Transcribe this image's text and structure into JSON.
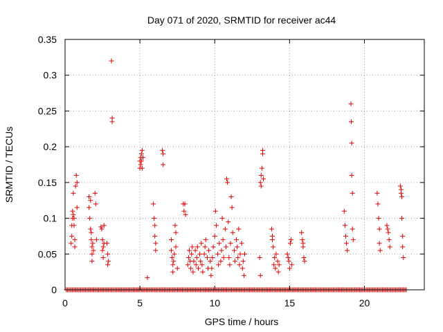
{
  "chart_data": {
    "type": "scatter",
    "title": "Day 071 of 2020, SRMTID for receiver ac44",
    "xlabel": "GPS time / hours",
    "ylabel": "SRMTID / TECUs",
    "xlim": [
      0,
      24
    ],
    "ylim": [
      0,
      0.35
    ],
    "grid": true,
    "marker": "+",
    "marker_color": "#e00000",
    "x_ticks": [
      0,
      5,
      10,
      15,
      20
    ],
    "x_tick_labels": [
      "0",
      "5",
      "10",
      "15",
      "20"
    ],
    "y_ticks": [
      0,
      0.05,
      0.1,
      0.15,
      0.2,
      0.25,
      0.3,
      0.35
    ],
    "y_tick_labels": [
      "0",
      "0.05",
      "0.1",
      "0.15",
      "0.2",
      "0.25",
      "0.3",
      "0.35"
    ],
    "series": [
      {
        "name": "SRMTID",
        "points": [
          [
            0.4,
            0.065
          ],
          [
            0.45,
            0.075
          ],
          [
            0.45,
            0.09
          ],
          [
            0.5,
            0.1
          ],
          [
            0.5,
            0.11
          ],
          [
            0.55,
            0.135
          ],
          [
            0.55,
            0.105
          ],
          [
            0.6,
            0.1
          ],
          [
            0.6,
            0.09
          ],
          [
            0.65,
            0.07
          ],
          [
            0.65,
            0.06
          ],
          [
            0.7,
            0.145
          ],
          [
            0.75,
            0.16
          ],
          [
            0.8,
            0.115
          ],
          [
            0.8,
            0.15
          ],
          [
            1.6,
            0.13
          ],
          [
            1.6,
            0.115
          ],
          [
            1.65,
            0.1
          ],
          [
            1.7,
            0.125
          ],
          [
            1.7,
            0.085
          ],
          [
            1.75,
            0.08
          ],
          [
            1.75,
            0.07
          ],
          [
            1.8,
            0.06
          ],
          [
            1.8,
            0.05
          ],
          [
            1.8,
            0.04
          ],
          [
            1.85,
            0.065
          ],
          [
            1.9,
            0.055
          ],
          [
            2.0,
            0.135
          ],
          [
            2.05,
            0.12
          ],
          [
            2.1,
            0.07
          ],
          [
            2.4,
            0.088
          ],
          [
            2.45,
            0.085
          ],
          [
            2.5,
            0.07
          ],
          [
            2.5,
            0.055
          ],
          [
            2.55,
            0.06
          ],
          [
            2.55,
            0.045
          ],
          [
            2.6,
            0.065
          ],
          [
            2.6,
            0.09
          ],
          [
            2.8,
            0.065
          ],
          [
            2.85,
            0.05
          ],
          [
            2.85,
            0.035
          ],
          [
            2.9,
            0.04
          ],
          [
            3.1,
            0.32
          ],
          [
            3.15,
            0.24
          ],
          [
            3.15,
            0.235
          ],
          [
            5.0,
            0.18
          ],
          [
            5.0,
            0.17
          ],
          [
            5.05,
            0.185
          ],
          [
            5.05,
            0.175
          ],
          [
            5.1,
            0.19
          ],
          [
            5.1,
            0.18
          ],
          [
            5.15,
            0.195
          ],
          [
            5.15,
            0.17
          ],
          [
            5.2,
            0.185
          ],
          [
            5.5,
            0.017
          ],
          [
            5.9,
            0.12
          ],
          [
            5.95,
            0.1
          ],
          [
            6.0,
            0.09
          ],
          [
            6.0,
            0.075
          ],
          [
            6.05,
            0.065
          ],
          [
            6.05,
            0.055
          ],
          [
            6.5,
            0.195
          ],
          [
            6.55,
            0.19
          ],
          [
            6.55,
            0.175
          ],
          [
            7.1,
            0.07
          ],
          [
            7.1,
            0.055
          ],
          [
            7.15,
            0.045
          ],
          [
            7.2,
            0.035
          ],
          [
            7.2,
            0.025
          ],
          [
            7.25,
            0.04
          ],
          [
            7.3,
            0.05
          ],
          [
            7.35,
            0.09
          ],
          [
            7.4,
            0.08
          ],
          [
            7.4,
            0.06
          ],
          [
            7.5,
            0.03
          ],
          [
            7.9,
            0.12
          ],
          [
            7.95,
            0.11
          ],
          [
            8.0,
            0.12
          ],
          [
            8.05,
            0.105
          ],
          [
            8.2,
            0.035
          ],
          [
            8.25,
            0.045
          ],
          [
            8.3,
            0.055
          ],
          [
            8.35,
            0.04
          ],
          [
            8.4,
            0.03
          ],
          [
            8.45,
            0.05
          ],
          [
            8.5,
            0.06
          ],
          [
            8.55,
            0.025
          ],
          [
            8.6,
            0.04
          ],
          [
            8.7,
            0.055
          ],
          [
            8.75,
            0.035
          ],
          [
            8.8,
            0.045
          ],
          [
            8.85,
            0.06
          ],
          [
            8.9,
            0.03
          ],
          [
            9.0,
            0.05
          ],
          [
            9.05,
            0.04
          ],
          [
            9.1,
            0.065
          ],
          [
            9.15,
            0.035
          ],
          [
            9.2,
            0.025
          ],
          [
            9.3,
            0.05
          ],
          [
            9.35,
            0.06
          ],
          [
            9.4,
            0.07
          ],
          [
            9.5,
            0.045
          ],
          [
            9.55,
            0.03
          ],
          [
            9.6,
            0.055
          ],
          [
            9.7,
            0.04
          ],
          [
            9.75,
            0.02
          ],
          [
            9.8,
            0.03
          ],
          [
            9.85,
            0.045
          ],
          [
            9.9,
            0.06
          ],
          [
            10.0,
            0.075
          ],
          [
            10.05,
            0.11
          ],
          [
            10.1,
            0.09
          ],
          [
            10.2,
            0.05
          ],
          [
            10.25,
            0.035
          ],
          [
            10.3,
            0.065
          ],
          [
            10.4,
            0.04
          ],
          [
            10.45,
            0.055
          ],
          [
            10.5,
            0.1
          ],
          [
            10.55,
            0.07
          ],
          [
            10.6,
            0.045
          ],
          [
            10.7,
            0.085
          ],
          [
            10.75,
            0.06
          ],
          [
            10.8,
            0.155
          ],
          [
            10.85,
            0.15
          ],
          [
            10.9,
            0.095
          ],
          [
            10.95,
            0.045
          ],
          [
            11.0,
            0.035
          ],
          [
            11.05,
            0.065
          ],
          [
            11.1,
            0.13
          ],
          [
            11.15,
            0.115
          ],
          [
            11.2,
            0.08
          ],
          [
            11.3,
            0.055
          ],
          [
            11.35,
            0.04
          ],
          [
            11.45,
            0.07
          ],
          [
            11.5,
            0.06
          ],
          [
            11.55,
            0.045
          ],
          [
            11.6,
            0.085
          ],
          [
            11.65,
            0.035
          ],
          [
            11.7,
            0.05
          ],
          [
            11.8,
            0.065
          ],
          [
            11.85,
            0.03
          ],
          [
            11.9,
            0.04
          ],
          [
            11.95,
            0.02
          ],
          [
            12.0,
            0.05
          ],
          [
            13.0,
            0.045
          ],
          [
            13.05,
            0.02
          ],
          [
            13.05,
            0.15
          ],
          [
            13.1,
            0.145
          ],
          [
            13.1,
            0.16
          ],
          [
            13.15,
            0.17
          ],
          [
            13.2,
            0.195
          ],
          [
            13.2,
            0.19
          ],
          [
            13.25,
            0.155
          ],
          [
            13.8,
            0.085
          ],
          [
            13.85,
            0.075
          ],
          [
            13.85,
            0.07
          ],
          [
            13.9,
            0.06
          ],
          [
            13.95,
            0.035
          ],
          [
            14.0,
            0.045
          ],
          [
            14.05,
            0.03
          ],
          [
            14.1,
            0.05
          ],
          [
            14.2,
            0.04
          ],
          [
            14.25,
            0.025
          ],
          [
            14.3,
            0.035
          ],
          [
            14.85,
            0.05
          ],
          [
            14.9,
            0.045
          ],
          [
            14.95,
            0.04
          ],
          [
            15.0,
            0.03
          ],
          [
            15.05,
            0.065
          ],
          [
            15.1,
            0.07
          ],
          [
            15.15,
            0.035
          ],
          [
            15.8,
            0.08
          ],
          [
            15.85,
            0.07
          ],
          [
            15.9,
            0.065
          ],
          [
            15.9,
            0.06
          ],
          [
            15.95,
            0.045
          ],
          [
            16.0,
            0.04
          ],
          [
            18.65,
            0.11
          ],
          [
            18.7,
            0.09
          ],
          [
            18.75,
            0.075
          ],
          [
            18.8,
            0.065
          ],
          [
            18.85,
            0.055
          ],
          [
            19.1,
            0.26
          ],
          [
            19.12,
            0.235
          ],
          [
            19.15,
            0.205
          ],
          [
            19.15,
            0.16
          ],
          [
            19.2,
            0.135
          ],
          [
            19.2,
            0.085
          ],
          [
            19.25,
            0.07
          ],
          [
            20.85,
            0.135
          ],
          [
            20.9,
            0.12
          ],
          [
            20.95,
            0.1
          ],
          [
            21.0,
            0.085
          ],
          [
            21.0,
            0.065
          ],
          [
            21.05,
            0.055
          ],
          [
            21.5,
            0.09
          ],
          [
            21.55,
            0.085
          ],
          [
            21.6,
            0.08
          ],
          [
            21.65,
            0.07
          ],
          [
            21.7,
            0.06
          ],
          [
            22.4,
            0.145
          ],
          [
            22.45,
            0.14
          ],
          [
            22.45,
            0.135
          ],
          [
            22.5,
            0.13
          ],
          [
            22.5,
            0.1
          ],
          [
            22.55,
            0.075
          ],
          [
            22.55,
            0.06
          ],
          [
            22.6,
            0.045
          ]
        ]
      }
    ],
    "zero_baseline_x": [
      0.08,
      0.16,
      0.24,
      0.32,
      0.4,
      0.48,
      0.56,
      0.64,
      0.72,
      0.8,
      0.88,
      0.96,
      1.04,
      1.12,
      1.2,
      1.28,
      1.36,
      1.44,
      1.52,
      1.6,
      1.68,
      1.76,
      1.84,
      1.92,
      2.0,
      2.08,
      2.16,
      2.24,
      2.32,
      2.4,
      2.48,
      2.56,
      2.64,
      2.72,
      2.8,
      2.88,
      2.96,
      3.04,
      3.12,
      3.2,
      3.28,
      3.36,
      3.44,
      3.52,
      3.6,
      3.68,
      3.76,
      3.84,
      3.92,
      4.0,
      4.08,
      4.16,
      4.24,
      4.32,
      4.4,
      4.48,
      4.56,
      4.64,
      4.72,
      4.8,
      4.88,
      4.96,
      5.04,
      5.12,
      5.2,
      5.28,
      5.36,
      5.44,
      5.52,
      5.6,
      5.68,
      5.76,
      5.84,
      5.92,
      6.0,
      6.08,
      6.16,
      6.24,
      6.32,
      6.4,
      6.48,
      6.56,
      6.64,
      6.72,
      6.8,
      6.88,
      6.96,
      7.04,
      7.12,
      7.2,
      7.28,
      7.36,
      7.44,
      7.52,
      7.6,
      7.68,
      7.76,
      7.84,
      7.92,
      8.0,
      8.08,
      8.16,
      8.24,
      8.32,
      8.4,
      8.48,
      8.56,
      8.64,
      8.72,
      8.8,
      8.88,
      8.96,
      9.04,
      9.12,
      9.2,
      9.28,
      9.36,
      9.44,
      9.52,
      9.6,
      9.68,
      9.76,
      9.84,
      9.92,
      10.0,
      10.08,
      10.16,
      10.24,
      10.32,
      10.4,
      10.48,
      10.56,
      10.64,
      10.72,
      10.8,
      10.88,
      10.96,
      11.04,
      11.12,
      11.2,
      11.28,
      11.36,
      11.44,
      11.52,
      11.6,
      11.68,
      11.76,
      11.84,
      11.92,
      12.0,
      12.08,
      12.16,
      12.24,
      12.32,
      12.4,
      12.48,
      12.56,
      12.64,
      12.72,
      12.8,
      12.88,
      12.96,
      13.04,
      13.12,
      13.2,
      13.28,
      13.36,
      13.44,
      13.52,
      13.6,
      13.68,
      13.76,
      13.84,
      13.92,
      14.0,
      14.08,
      14.16,
      14.24,
      14.32,
      14.4,
      14.48,
      14.56,
      14.64,
      14.72,
      14.8,
      14.88,
      14.96,
      15.04,
      15.12,
      15.2,
      15.28,
      15.36,
      15.44,
      15.52,
      15.6,
      15.68,
      15.76,
      15.84,
      15.92,
      16.0,
      16.08,
      16.16,
      16.24,
      16.32,
      16.4,
      16.48,
      16.56,
      16.64,
      16.72,
      16.8,
      16.88,
      16.96,
      17.04,
      17.12,
      17.2,
      17.28,
      17.36,
      17.44,
      17.52,
      17.6,
      17.68,
      17.76,
      17.84,
      17.92,
      18.0,
      18.08,
      18.16,
      18.24,
      18.32,
      18.4,
      18.48,
      18.56,
      18.64,
      18.72,
      18.8,
      18.88,
      18.96,
      19.04,
      19.12,
      19.2,
      19.28,
      19.36,
      19.44,
      19.52,
      19.6,
      19.68,
      19.76,
      19.84,
      19.92,
      20.0,
      20.08,
      20.16,
      20.24,
      20.32,
      20.4,
      20.48,
      20.56,
      20.64,
      20.72,
      20.8,
      20.88,
      20.96,
      21.04,
      21.12,
      21.2,
      21.28,
      21.36,
      21.44,
      21.52,
      21.6,
      21.68,
      21.76,
      21.84,
      21.92,
      22.0,
      22.08,
      22.16,
      22.24,
      22.32,
      22.4,
      22.48,
      22.56,
      22.64,
      22.72,
      22.8
    ]
  }
}
